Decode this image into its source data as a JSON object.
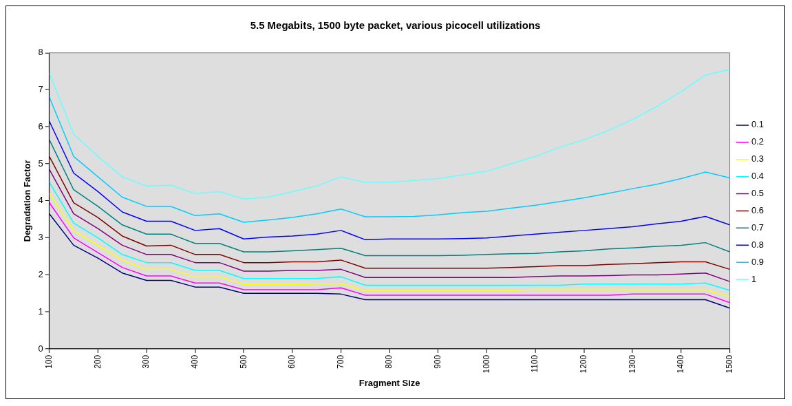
{
  "chart_data": {
    "type": "line",
    "title": "5.5 Megabits, 1500 byte packet, various picocell utilizations",
    "xlabel": "Fragment Size",
    "ylabel": "Degradation Factor",
    "x": [
      100,
      150,
      200,
      250,
      300,
      350,
      400,
      450,
      500,
      550,
      600,
      650,
      700,
      750,
      800,
      850,
      900,
      950,
      1000,
      1050,
      1100,
      1150,
      1200,
      1250,
      1300,
      1350,
      1400,
      1450,
      1500
    ],
    "xlim": [
      100,
      1500
    ],
    "xticks": [
      100,
      200,
      300,
      400,
      500,
      600,
      700,
      800,
      900,
      1000,
      1100,
      1200,
      1300,
      1400,
      1500
    ],
    "ylim": [
      0,
      8
    ],
    "yticks": [
      0,
      1,
      2,
      3,
      4,
      5,
      6,
      7,
      8
    ],
    "grid": false,
    "legend": "right",
    "marker": "none",
    "line_style": "solid",
    "series": [
      {
        "name": "0.1",
        "color": "#000080",
        "values": [
          3.65,
          2.8,
          2.45,
          2.05,
          1.85,
          1.85,
          1.67,
          1.67,
          1.5,
          1.5,
          1.5,
          1.5,
          1.48,
          1.33,
          1.33,
          1.33,
          1.33,
          1.33,
          1.33,
          1.33,
          1.33,
          1.33,
          1.33,
          1.33,
          1.33,
          1.33,
          1.33,
          1.33,
          1.1
        ]
      },
      {
        "name": "0.2",
        "color": "#ff00ff",
        "values": [
          3.95,
          3.0,
          2.6,
          2.2,
          1.97,
          1.97,
          1.78,
          1.78,
          1.6,
          1.6,
          1.6,
          1.6,
          1.65,
          1.45,
          1.45,
          1.45,
          1.45,
          1.45,
          1.45,
          1.45,
          1.45,
          1.45,
          1.45,
          1.45,
          1.48,
          1.48,
          1.48,
          1.48,
          1.25
        ]
      },
      {
        "name": "0.3",
        "color": "#ffff00",
        "values": [
          4.2,
          3.2,
          2.8,
          2.4,
          2.15,
          2.15,
          1.95,
          1.95,
          1.75,
          1.75,
          1.75,
          1.77,
          1.77,
          1.57,
          1.57,
          1.57,
          1.57,
          1.57,
          1.57,
          1.57,
          1.6,
          1.6,
          1.6,
          1.6,
          1.6,
          1.6,
          1.6,
          1.6,
          1.42
        ]
      },
      {
        "name": "0.4",
        "color": "#00ffff",
        "values": [
          4.5,
          3.4,
          3.0,
          2.55,
          2.33,
          2.33,
          2.12,
          2.12,
          1.9,
          1.9,
          1.9,
          1.9,
          1.95,
          1.72,
          1.72,
          1.72,
          1.72,
          1.72,
          1.72,
          1.72,
          1.72,
          1.72,
          1.75,
          1.75,
          1.75,
          1.75,
          1.75,
          1.78,
          1.58
        ]
      },
      {
        "name": "0.5",
        "color": "#800080",
        "values": [
          4.85,
          3.65,
          3.25,
          2.8,
          2.55,
          2.55,
          2.33,
          2.33,
          2.1,
          2.1,
          2.12,
          2.12,
          2.15,
          1.93,
          1.93,
          1.93,
          1.93,
          1.93,
          1.93,
          1.93,
          1.95,
          1.97,
          1.97,
          1.98,
          2.0,
          2.0,
          2.02,
          2.05,
          1.82
        ]
      },
      {
        "name": "0.6",
        "color": "#800000",
        "values": [
          5.2,
          3.95,
          3.55,
          3.05,
          2.78,
          2.8,
          2.55,
          2.55,
          2.33,
          2.33,
          2.35,
          2.35,
          2.4,
          2.18,
          2.18,
          2.18,
          2.18,
          2.18,
          2.18,
          2.2,
          2.22,
          2.25,
          2.25,
          2.28,
          2.3,
          2.33,
          2.35,
          2.35,
          2.15
        ]
      },
      {
        "name": "0.7",
        "color": "#008080",
        "values": [
          5.65,
          4.3,
          3.85,
          3.35,
          3.1,
          3.1,
          2.85,
          2.85,
          2.62,
          2.62,
          2.65,
          2.68,
          2.72,
          2.52,
          2.52,
          2.52,
          2.52,
          2.53,
          2.55,
          2.57,
          2.58,
          2.62,
          2.65,
          2.7,
          2.73,
          2.77,
          2.8,
          2.87,
          2.62
        ]
      },
      {
        "name": "0.8",
        "color": "#0000ff",
        "values": [
          6.15,
          4.75,
          4.25,
          3.7,
          3.45,
          3.45,
          3.2,
          3.25,
          2.97,
          3.02,
          3.05,
          3.1,
          3.2,
          2.95,
          2.97,
          2.97,
          2.97,
          2.98,
          3.0,
          3.05,
          3.1,
          3.15,
          3.2,
          3.25,
          3.3,
          3.38,
          3.45,
          3.58,
          3.35
        ]
      },
      {
        "name": "0.9",
        "color": "#00ccff",
        "values": [
          6.8,
          5.2,
          4.65,
          4.1,
          3.85,
          3.85,
          3.6,
          3.65,
          3.42,
          3.48,
          3.55,
          3.65,
          3.78,
          3.57,
          3.57,
          3.58,
          3.62,
          3.68,
          3.72,
          3.8,
          3.88,
          3.98,
          4.08,
          4.2,
          4.33,
          4.45,
          4.6,
          4.78,
          4.62
        ]
      },
      {
        "name": "1",
        "color": "#66ffff",
        "values": [
          7.45,
          5.8,
          5.2,
          4.65,
          4.4,
          4.42,
          4.2,
          4.25,
          4.05,
          4.1,
          4.25,
          4.4,
          4.65,
          4.5,
          4.5,
          4.55,
          4.6,
          4.7,
          4.8,
          5.0,
          5.2,
          5.45,
          5.65,
          5.9,
          6.2,
          6.55,
          6.95,
          7.4,
          7.55
        ]
      }
    ]
  }
}
